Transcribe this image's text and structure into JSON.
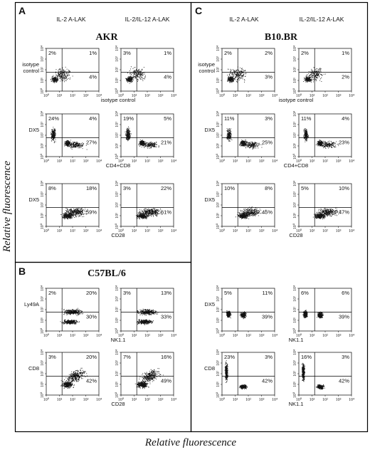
{
  "figure": {
    "y_axis_title": "Relative fluorescence",
    "x_axis_title": "Relative fluorescence",
    "tick_labels": [
      "10⁰",
      "10¹",
      "10²",
      "10³",
      "10⁴"
    ]
  },
  "sections": [
    {
      "letter": "A",
      "strain": "AKR",
      "column_headers": [
        "IL-2  A-LAK",
        "IL-2/IL-12  A-LAK"
      ],
      "rows": [
        {
          "ylabel": "isotype\ncontrol",
          "xlabel": "isotype  control",
          "plots": [
            {
              "q": [
                "2%",
                "1%",
                "",
                "4%"
              ]
            },
            {
              "q": [
                "3%",
                "1%",
                "",
                "4%"
              ]
            }
          ]
        },
        {
          "ylabel": "DX5",
          "xlabel": "CD4+CD8",
          "plots": [
            {
              "q": [
                "24%",
                "4%",
                "",
                "27%"
              ]
            },
            {
              "q": [
                "19%",
                "5%",
                "",
                "21%"
              ]
            }
          ]
        },
        {
          "ylabel": "DX5",
          "xlabel": "CD28",
          "plots": [
            {
              "q": [
                "8%",
                "18%",
                "",
                "59%"
              ]
            },
            {
              "q": [
                "3%",
                "22%",
                "",
                "61%"
              ]
            }
          ]
        }
      ]
    },
    {
      "letter": "B",
      "strain": "C57BL/6",
      "column_headers": [
        "",
        ""
      ],
      "rows": [
        {
          "ylabel": "Ly49A",
          "xlabel": "NK1.1",
          "plots": [
            {
              "q": [
                "2%",
                "20%",
                "",
                "30%"
              ]
            },
            {
              "q": [
                "3%",
                "13%",
                "",
                "33%"
              ]
            }
          ]
        },
        {
          "ylabel": "CD8",
          "xlabel": "CD28",
          "plots": [
            {
              "q": [
                "3%",
                "20%",
                "",
                "42%"
              ]
            },
            {
              "q": [
                "7%",
                "16%",
                "",
                "49%"
              ]
            }
          ]
        }
      ]
    },
    {
      "letter": "C",
      "strain": "B10.BR",
      "column_headers": [
        "IL-2  A-LAK",
        "IL-2/IL-12  A-LAK"
      ],
      "rows": [
        {
          "ylabel": "isotype\ncontrol",
          "xlabel": "isotype  control",
          "plots": [
            {
              "q": [
                "2%",
                "2%",
                "",
                "3%"
              ]
            },
            {
              "q": [
                "2%",
                "1%",
                "",
                "2%"
              ]
            }
          ]
        },
        {
          "ylabel": "DX5",
          "xlabel": "CD4+CD8",
          "plots": [
            {
              "q": [
                "11%",
                "3%",
                "",
                "25%"
              ]
            },
            {
              "q": [
                "11%",
                "4%",
                "",
                "23%"
              ]
            }
          ]
        },
        {
          "ylabel": "DX5",
          "xlabel": "CD28",
          "plots": [
            {
              "q": [
                "10%",
                "8%",
                "",
                "45%"
              ]
            },
            {
              "q": [
                "5%",
                "10%",
                "",
                "47%"
              ]
            }
          ]
        },
        {
          "ylabel": "DX5",
          "xlabel": "NK1.1",
          "plots": [
            {
              "q": [
                "5%",
                "11%",
                "",
                "39%"
              ]
            },
            {
              "q": [
                "6%",
                "6%",
                "",
                "39%"
              ]
            }
          ]
        },
        {
          "ylabel": "CD8",
          "xlabel": "NK1.1",
          "plots": [
            {
              "q": [
                "23%",
                "3%",
                "",
                "42%"
              ]
            },
            {
              "q": [
                "16%",
                "3%",
                "",
                "42%"
              ]
            }
          ]
        }
      ]
    }
  ]
}
